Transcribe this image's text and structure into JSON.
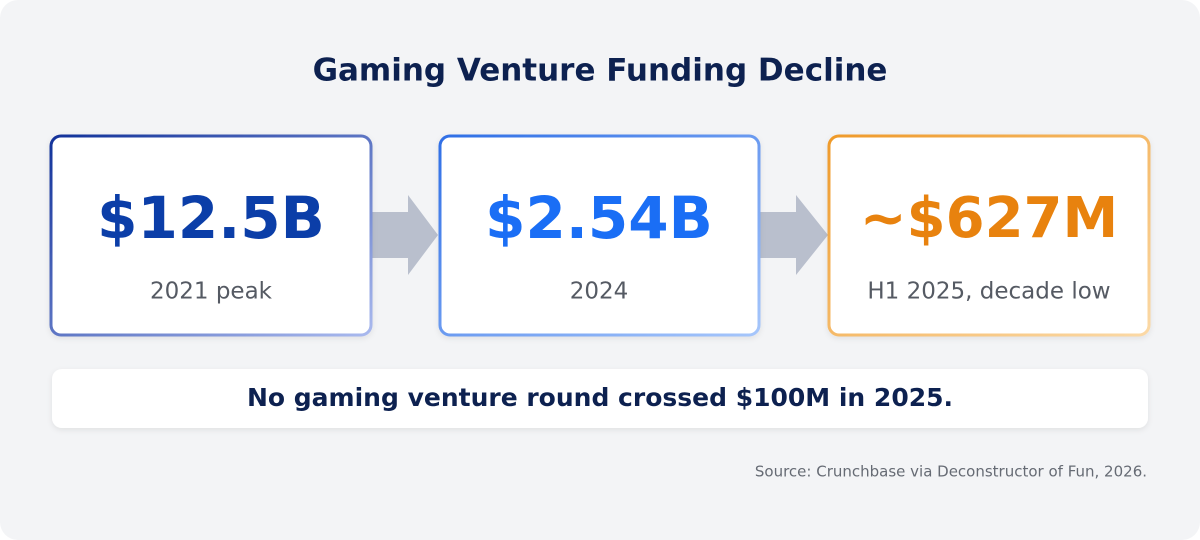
{
  "title": "Gaming Venture Funding Decline",
  "cards": [
    {
      "value": "$12.5B",
      "label": "2021 peak"
    },
    {
      "value": "$2.54B",
      "label": "2024"
    },
    {
      "value": "~$627M",
      "label": "H1 2025, decade low"
    }
  ],
  "note": "No gaming venture round crossed $100M in 2025.",
  "source": "Source: Crunchbase via Deconstructor of Fun, 2026."
}
